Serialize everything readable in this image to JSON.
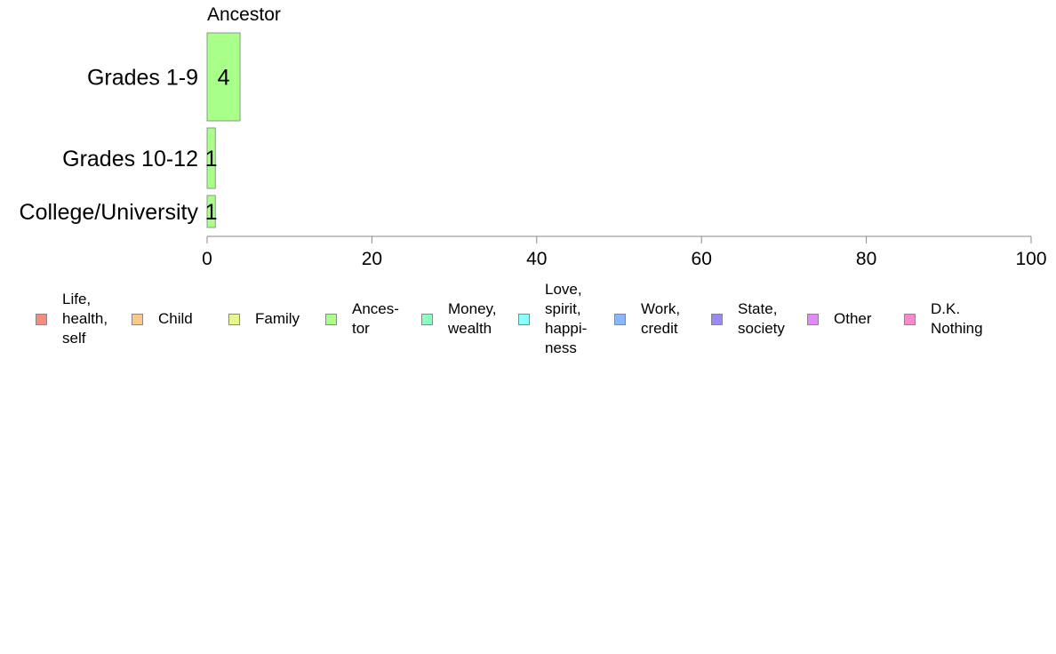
{
  "chart_data": {
    "type": "bar",
    "orientation": "horizontal",
    "stacked": true,
    "facet_title": "Ancestor",
    "categories": [
      "Grades 1-9",
      "Grades 10-12",
      "College/University"
    ],
    "series": [
      {
        "name": "Ancestor",
        "values": [
          4,
          1,
          1
        ],
        "labels": [
          "4",
          "1",
          "1"
        ],
        "color": "#a8ff8a"
      }
    ],
    "xlim": [
      0,
      100
    ],
    "xticks": [
      0,
      20,
      40,
      60,
      80,
      100
    ],
    "grid": false,
    "legend_position": "bottom",
    "legend": [
      {
        "label": "Life,\nhealth,\nself",
        "color": "#f28b82"
      },
      {
        "label": "Child",
        "color": "#f9c88a"
      },
      {
        "label": "Family",
        "color": "#eaf78a"
      },
      {
        "label": "Ances-\ntor",
        "color": "#a8ff8a"
      },
      {
        "label": "Money,\nwealth",
        "color": "#8affc0"
      },
      {
        "label": "Love,\nspirit,\nhappi-\nness",
        "color": "#8affff"
      },
      {
        "label": "Work,\ncredit",
        "color": "#8ab6ff"
      },
      {
        "label": "State,\nsociety",
        "color": "#9a8af5"
      },
      {
        "label": "Other",
        "color": "#e38af7"
      },
      {
        "label": "D.K.\nNothing",
        "color": "#f78acb"
      }
    ]
  }
}
